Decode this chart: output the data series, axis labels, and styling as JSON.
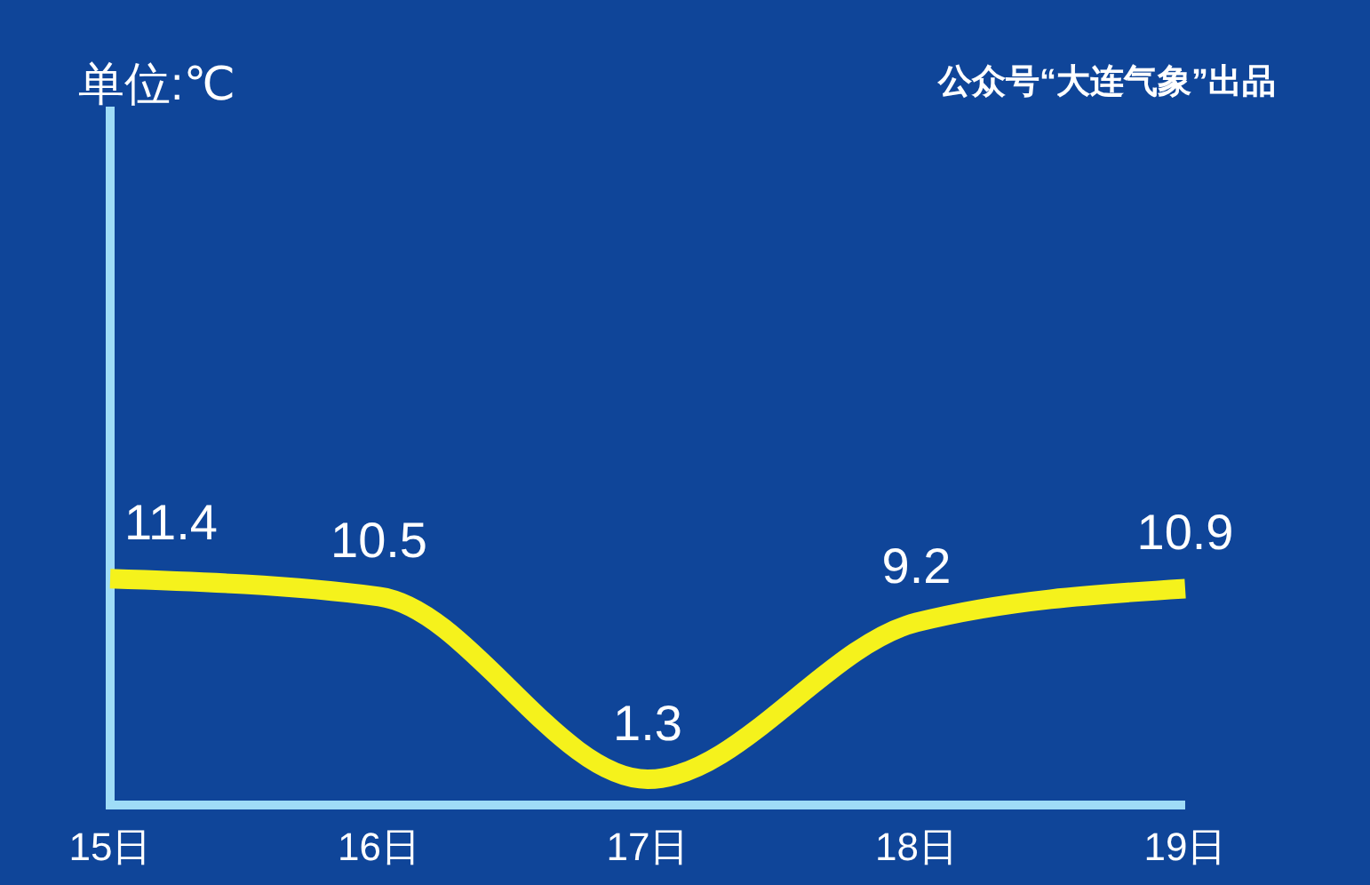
{
  "chart_data": {
    "type": "line",
    "ylabel": "单位:℃",
    "annotations": [
      "公众号“大连气象”出品"
    ],
    "categories": [
      "15日",
      "16日",
      "17日",
      "18日",
      "19日"
    ],
    "series": [
      {
        "color": "#f5f21c",
        "values": [
          11.4,
          10.5,
          1.3,
          9.2,
          10.9
        ]
      }
    ],
    "ylim": [
      0,
      35
    ],
    "tick_labels": "x",
    "data_labels": true,
    "line_style": "solid"
  }
}
